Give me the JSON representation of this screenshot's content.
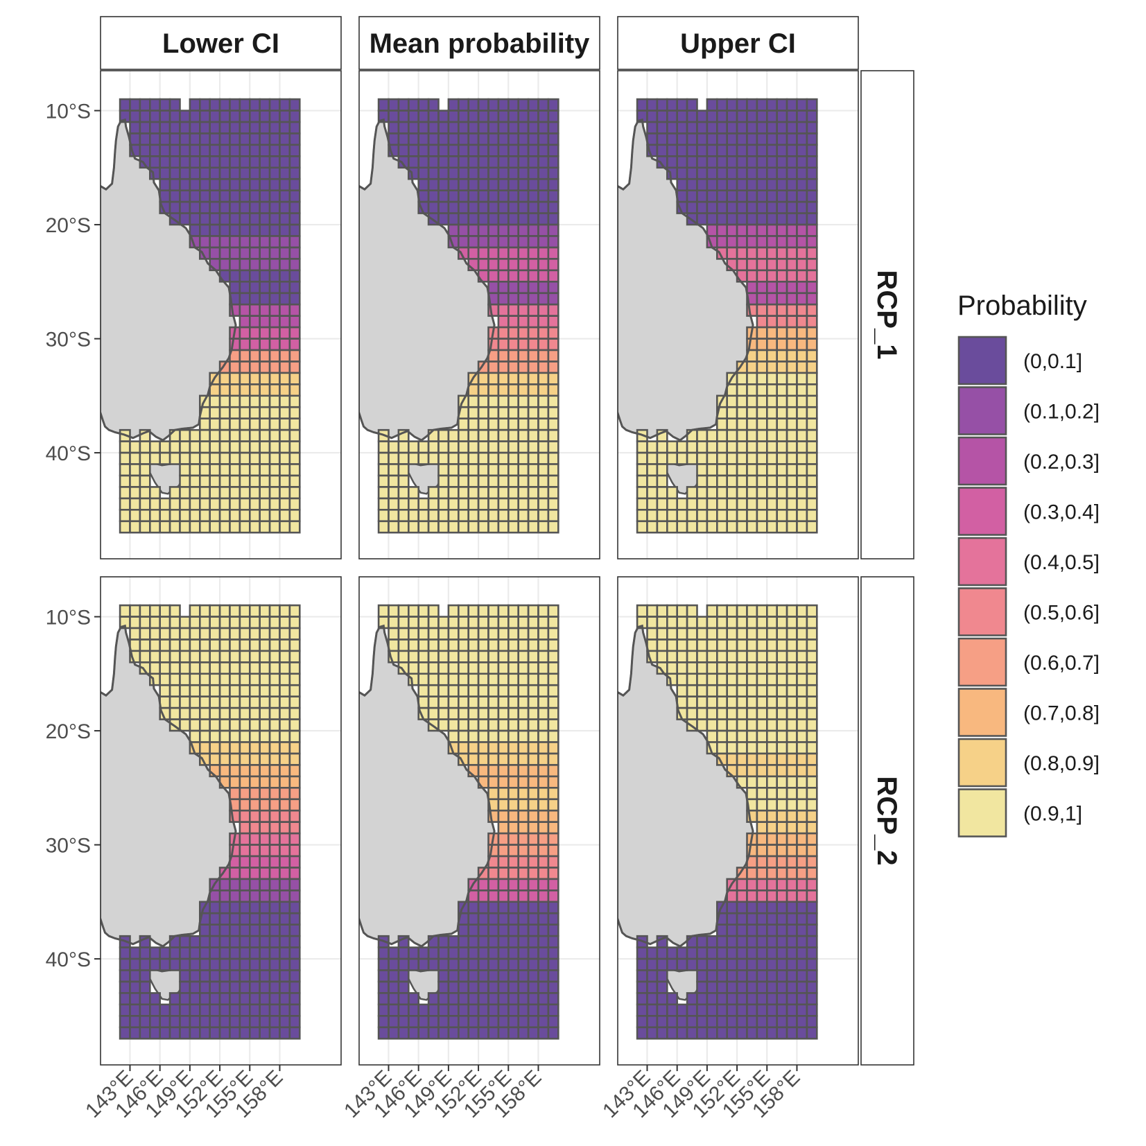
{
  "columns": [
    "Lower CI",
    "Mean probability",
    "Upper CI"
  ],
  "rows": [
    "RCP_1",
    "RCP_2"
  ],
  "x_axis": {
    "ticks": [
      "143°E",
      "146°E",
      "149°E",
      "152°E",
      "155°E",
      "158°E"
    ],
    "tick_values": [
      143,
      146,
      149,
      152,
      155,
      158
    ]
  },
  "y_axis": {
    "ticks": [
      "10°S",
      "20°S",
      "30°S",
      "40°S"
    ],
    "tick_values": [
      -10,
      -20,
      -30,
      -40
    ]
  },
  "legend": {
    "title": "Probability",
    "bins": [
      {
        "label": "(0,0.1]",
        "color": "#6a4c9c"
      },
      {
        "label": "(0.1,0.2]",
        "color": "#9650a6"
      },
      {
        "label": "(0.2,0.3]",
        "color": "#b554a6"
      },
      {
        "label": "(0.3,0.4]",
        "color": "#d260a3"
      },
      {
        "label": "(0.4,0.5]",
        "color": "#e4739b"
      },
      {
        "label": "(0.5,0.6]",
        "color": "#f0888f"
      },
      {
        "label": "(0.6,0.7]",
        "color": "#f69f85"
      },
      {
        "label": "(0.7,0.8]",
        "color": "#f8b87f"
      },
      {
        "label": "(0.8,0.9]",
        "color": "#f6d188"
      },
      {
        "label": "(0.9,1]",
        "color": "#f1e6a0"
      }
    ]
  },
  "chart_data": {
    "type": "heatmap",
    "facets": {
      "Lower CI|RCP_1": {
        "lat_bands": [
          [
            -9,
            -21,
            0
          ],
          [
            -21,
            -24,
            1
          ],
          [
            -24,
            -27,
            0
          ],
          [
            -27,
            -29,
            2
          ],
          [
            -29,
            -31,
            3
          ],
          [
            -31,
            -33,
            6
          ],
          [
            -33,
            -35,
            8
          ],
          [
            -35,
            -47,
            9
          ]
        ]
      },
      "Mean probability|RCP_1": {
        "lat_bands": [
          [
            -9,
            -20,
            0
          ],
          [
            -20,
            -22,
            1
          ],
          [
            -22,
            -25,
            3
          ],
          [
            -25,
            -27,
            1
          ],
          [
            -27,
            -29,
            4
          ],
          [
            -29,
            -31,
            5
          ],
          [
            -31,
            -33,
            6
          ],
          [
            -33,
            -35,
            8
          ],
          [
            -35,
            -47,
            9
          ]
        ]
      },
      "Upper CI|RCP_1": {
        "lat_bands": [
          [
            -9,
            -20,
            0
          ],
          [
            -20,
            -22,
            2
          ],
          [
            -22,
            -25,
            4
          ],
          [
            -25,
            -27,
            2
          ],
          [
            -27,
            -29,
            5
          ],
          [
            -29,
            -31,
            7
          ],
          [
            -31,
            -33,
            8
          ],
          [
            -33,
            -47,
            9
          ]
        ]
      },
      "Lower CI|RCP_2": {
        "lat_bands": [
          [
            -9,
            -21,
            9
          ],
          [
            -21,
            -23,
            8
          ],
          [
            -23,
            -25,
            7
          ],
          [
            -25,
            -27,
            6
          ],
          [
            -27,
            -29,
            5
          ],
          [
            -29,
            -31,
            4
          ],
          [
            -31,
            -33,
            3
          ],
          [
            -33,
            -35,
            1
          ],
          [
            -35,
            -47,
            0
          ]
        ]
      },
      "Mean probability|RCP_2": {
        "lat_bands": [
          [
            -9,
            -21,
            9
          ],
          [
            -21,
            -23,
            8
          ],
          [
            -23,
            -25,
            7
          ],
          [
            -25,
            -27,
            8
          ],
          [
            -27,
            -29,
            7
          ],
          [
            -29,
            -31,
            6
          ],
          [
            -31,
            -33,
            5
          ],
          [
            -33,
            -35,
            3
          ],
          [
            -35,
            -47,
            0
          ]
        ]
      },
      "Upper CI|RCP_2": {
        "lat_bands": [
          [
            -9,
            -22,
            9
          ],
          [
            -22,
            -24,
            8
          ],
          [
            -24,
            -27,
            9
          ],
          [
            -27,
            -29,
            8
          ],
          [
            -29,
            -31,
            7
          ],
          [
            -31,
            -33,
            6
          ],
          [
            -33,
            -35,
            4
          ],
          [
            -35,
            -47,
            0
          ]
        ]
      }
    }
  }
}
